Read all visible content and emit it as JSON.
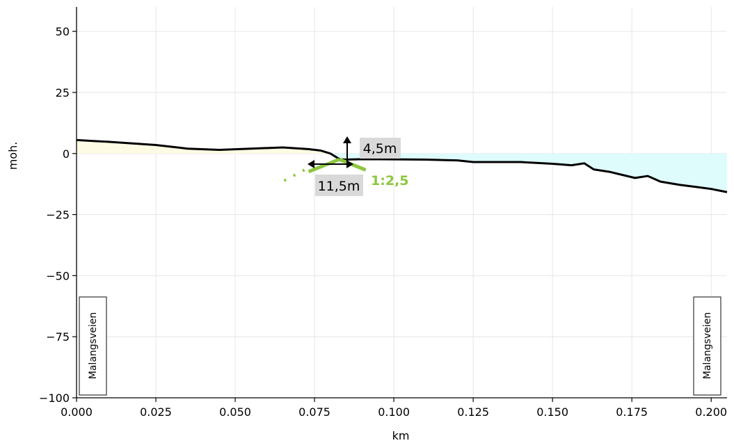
{
  "chart_data": {
    "type": "area",
    "xlabel": "km",
    "ylabel": "moh.",
    "xlim": [
      0.0,
      0.205
    ],
    "ylim": [
      -100,
      60
    ],
    "grid": true,
    "x_ticks": [
      0.0,
      0.025,
      0.05,
      0.075,
      0.1,
      0.125,
      0.15,
      0.175,
      0.2
    ],
    "x_tick_labels": [
      "0.000",
      "0.025",
      "0.050",
      "0.075",
      "0.100",
      "0.125",
      "0.150",
      "0.175",
      "0.200"
    ],
    "y_ticks": [
      50,
      25,
      0,
      -25,
      -50,
      -75,
      -100
    ],
    "y_tick_labels": [
      "50",
      "25",
      "0",
      "−25",
      "−50",
      "−75",
      "−100"
    ],
    "series": [
      {
        "x": [
          0.0,
          0.01,
          0.025,
          0.035,
          0.045,
          0.055,
          0.065,
          0.073,
          0.077,
          0.08,
          0.083,
          0.085,
          0.09,
          0.1,
          0.11,
          0.12,
          0.125,
          0.14,
          0.15,
          0.156,
          0.16,
          0.163,
          0.168,
          0.176,
          0.18,
          0.184,
          0.19,
          0.196,
          0.2,
          0.205
        ],
        "y": [
          5.5,
          4.8,
          3.5,
          2.0,
          1.5,
          2.0,
          2.5,
          1.8,
          1.2,
          0.0,
          -2.4,
          -2.5,
          -2.3,
          -2.4,
          -2.5,
          -2.8,
          -3.5,
          -3.5,
          -4.2,
          -4.8,
          -4.0,
          -6.5,
          -7.5,
          -10.0,
          -9.2,
          -11.5,
          -12.8,
          -13.8,
          -14.5,
          -15.8
        ]
      }
    ],
    "fills": {
      "above_zero_color": "#fdfbe3",
      "below_zero_color": "#dffcfd"
    },
    "end_labels": [
      "Malangsveien",
      "Malangsveien"
    ],
    "annotations": {
      "vertical_measure": "4,5m",
      "horizontal_measure": "11,5m",
      "slope_ratio": "1:2,5",
      "slope_color": "#8dc63f"
    }
  }
}
